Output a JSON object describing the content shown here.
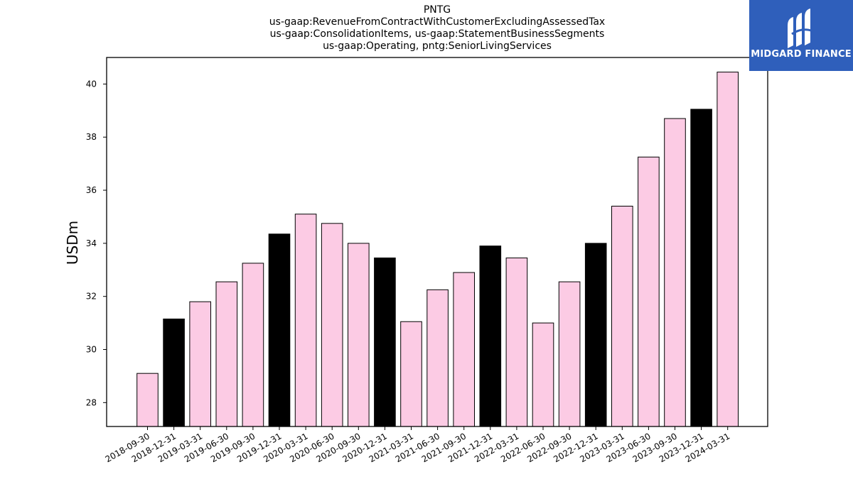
{
  "chart_data": {
    "type": "bar",
    "title_lines": [
      "PNTG",
      "us-gaap:RevenueFromContractWithCustomerExcludingAssessedTax",
      "us-gaap:ConsolidationItems, us-gaap:StatementBusinessSegments",
      "us-gaap:Operating, pntg:SeniorLivingServices"
    ],
    "ylabel": "USDm",
    "xlabel": "",
    "ylim": [
      27.1,
      41.0
    ],
    "yticks": [
      28,
      30,
      32,
      34,
      36,
      38,
      40
    ],
    "grid": false,
    "categories": [
      "2018-09-30",
      "2018-12-31",
      "2019-03-31",
      "2019-06-30",
      "2019-09-30",
      "2019-12-31",
      "2020-03-31",
      "2020-06-30",
      "2020-09-30",
      "2020-12-31",
      "2021-03-31",
      "2021-06-30",
      "2021-09-30",
      "2021-12-31",
      "2022-03-31",
      "2022-06-30",
      "2022-09-30",
      "2022-12-31",
      "2023-03-31",
      "2023-06-30",
      "2023-09-30",
      "2023-12-31",
      "2024-03-31"
    ],
    "values": [
      29.1,
      31.15,
      31.8,
      32.55,
      33.25,
      34.35,
      35.1,
      34.75,
      34.0,
      33.45,
      31.05,
      32.25,
      32.9,
      33.9,
      33.45,
      31.0,
      32.55,
      34.0,
      35.4,
      37.25,
      38.7,
      39.05,
      40.45
    ],
    "bar_colors": [
      "#fccbe4",
      "#000000",
      "#fccbe4",
      "#fccbe4",
      "#fccbe4",
      "#000000",
      "#fccbe4",
      "#fccbe4",
      "#fccbe4",
      "#000000",
      "#fccbe4",
      "#fccbe4",
      "#fccbe4",
      "#000000",
      "#fccbe4",
      "#fccbe4",
      "#fccbe4",
      "#000000",
      "#fccbe4",
      "#fccbe4",
      "#fccbe4",
      "#000000",
      "#fccbe4"
    ]
  },
  "logo": {
    "text": "MIDGARD FINANCE",
    "background": "#2f5fbb"
  }
}
